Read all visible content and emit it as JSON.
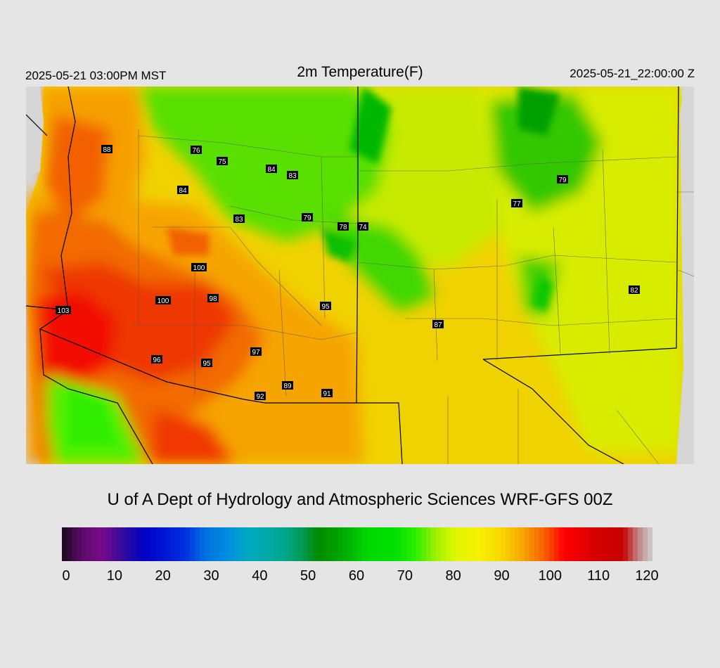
{
  "header": {
    "valid_local": "2025-05-21 03:00PM MST",
    "title": "2m Temperature(F)",
    "valid_utc": "2025-05-21_22:00:00 Z"
  },
  "credit": "U of A Dept of Hydrology and Atmospheric Sciences WRF-GFS 00Z",
  "colorbar": {
    "min": 0,
    "max": 120,
    "tick_labels": [
      "0",
      "10",
      "20",
      "30",
      "40",
      "50",
      "60",
      "70",
      "80",
      "90",
      "100",
      "110",
      "120"
    ],
    "stops": [
      {
        "v": 0,
        "c": "#1a0a1a"
      },
      {
        "v": 4,
        "c": "#5a0a6a"
      },
      {
        "v": 8,
        "c": "#7a0a8a"
      },
      {
        "v": 13,
        "c": "#2a0aa0"
      },
      {
        "v": 17,
        "c": "#0000c8"
      },
      {
        "v": 25,
        "c": "#0030e0"
      },
      {
        "v": 29,
        "c": "#0070e0"
      },
      {
        "v": 34,
        "c": "#0090e0"
      },
      {
        "v": 38,
        "c": "#00aac0"
      },
      {
        "v": 45,
        "c": "#00a890"
      },
      {
        "v": 49,
        "c": "#009a50"
      },
      {
        "v": 52,
        "c": "#008a00"
      },
      {
        "v": 58,
        "c": "#00b000"
      },
      {
        "v": 62,
        "c": "#00d800"
      },
      {
        "v": 68,
        "c": "#00e000"
      },
      {
        "v": 72,
        "c": "#30f000"
      },
      {
        "v": 76,
        "c": "#a0f000"
      },
      {
        "v": 80,
        "c": "#e0f800"
      },
      {
        "v": 85,
        "c": "#f8f000"
      },
      {
        "v": 90,
        "c": "#f8d000"
      },
      {
        "v": 94,
        "c": "#f8a000"
      },
      {
        "v": 98,
        "c": "#f86000"
      },
      {
        "v": 102,
        "c": "#ff0000"
      },
      {
        "v": 108,
        "c": "#d80000"
      },
      {
        "v": 114,
        "c": "#c80000"
      },
      {
        "v": 117,
        "c": "#c08080"
      },
      {
        "v": 120,
        "c": "#d0d0d0"
      }
    ]
  },
  "stations": [
    "88",
    "76",
    "75",
    "84",
    "83",
    "84",
    "79",
    "78",
    "74",
    "83",
    "77",
    "79",
    "100",
    "100",
    "98",
    "103",
    "95",
    "87",
    "82",
    "96",
    "95",
    "97",
    "89",
    "92",
    "91",
    "89"
  ]
}
